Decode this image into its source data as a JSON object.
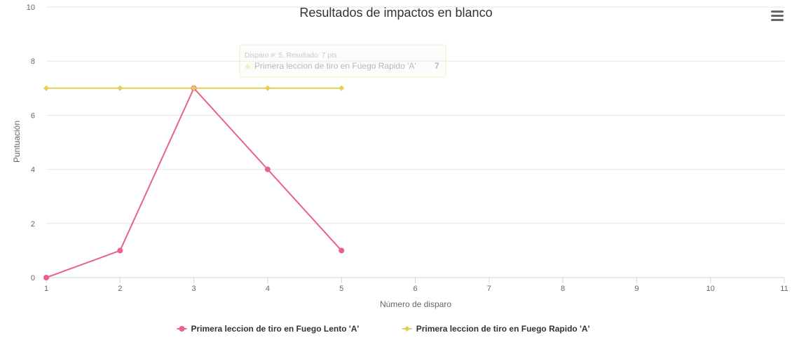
{
  "chart_data": {
    "type": "line",
    "title": "Resultados de impactos en blanco",
    "xlabel": "Número de disparo",
    "ylabel": "Puntuación",
    "xlim": [
      1,
      11
    ],
    "ylim": [
      0,
      10
    ],
    "x_ticks": [
      "1",
      "2",
      "3",
      "4",
      "5",
      "6",
      "7",
      "8",
      "9",
      "10",
      "11"
    ],
    "y_ticks": [
      "0",
      "2",
      "4",
      "6",
      "8",
      "10"
    ],
    "grid": true,
    "legend_position": "bottom-center",
    "series": [
      {
        "name": "Primera leccion de tiro en Fuego Lento 'A'",
        "color": "#e8628a",
        "marker": "circle",
        "x": [
          1,
          2,
          3,
          4,
          5
        ],
        "y": [
          0,
          1,
          7,
          4,
          1
        ]
      },
      {
        "name": "Primera leccion de tiro en Fuego Rapido 'A'",
        "color": "#e4cf52",
        "marker": "diamond",
        "x": [
          1,
          2,
          3,
          4,
          5
        ],
        "y": [
          7,
          7,
          7,
          7,
          7
        ]
      }
    ],
    "tooltip": {
      "header": "Disparo #: 5, Resultado: 7 pts",
      "series_name": "Primera leccion de tiro en Fuego Rapido 'A'",
      "value": "7"
    }
  },
  "menu": {
    "icon": "hamburger-menu-icon"
  }
}
